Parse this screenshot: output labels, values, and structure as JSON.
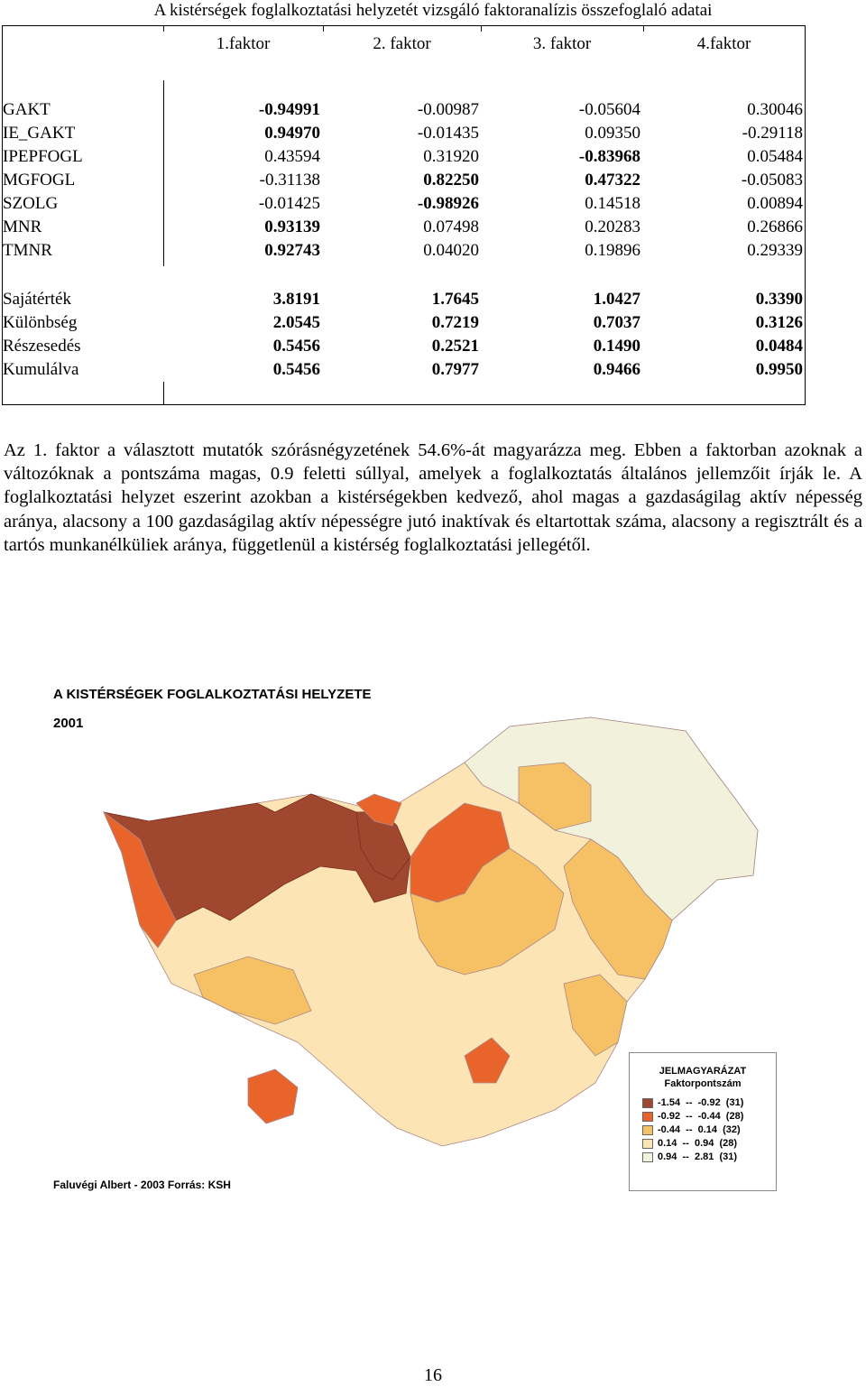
{
  "title": "A kistérségek foglalkoztatási helyzetét vizsgáló faktoranalízis összefoglaló adatai",
  "table": {
    "headers": [
      "1.faktor",
      "2. faktor",
      "3. faktor",
      "4.faktor"
    ],
    "rows": [
      {
        "label": "GAKT",
        "values": [
          "-0.94991",
          "-0.00987",
          "-0.05604",
          "0.30046"
        ],
        "bold": [
          true,
          false,
          false,
          false
        ]
      },
      {
        "label": "IE_GAKT",
        "values": [
          "0.94970",
          "-0.01435",
          "0.09350",
          "-0.29118"
        ],
        "bold": [
          true,
          false,
          false,
          false
        ]
      },
      {
        "label": "IPEPFOGL",
        "values": [
          "0.43594",
          "0.31920",
          "-0.83968",
          "0.05484"
        ],
        "bold": [
          false,
          false,
          true,
          false
        ]
      },
      {
        "label": "MGFOGL",
        "values": [
          "-0.31138",
          "0.82250",
          "0.47322",
          "-0.05083"
        ],
        "bold": [
          false,
          true,
          true,
          false
        ]
      },
      {
        "label": "SZOLG",
        "values": [
          "-0.01425",
          "-0.98926",
          "0.14518",
          "0.00894"
        ],
        "bold": [
          false,
          true,
          false,
          false
        ]
      },
      {
        "label": "MNR",
        "values": [
          "0.93139",
          "0.07498",
          "0.20283",
          "0.26866"
        ],
        "bold": [
          true,
          false,
          false,
          false
        ]
      },
      {
        "label": "TMNR",
        "values": [
          "0.92743",
          "0.04020",
          "0.19896",
          "0.29339"
        ],
        "bold": [
          true,
          false,
          false,
          false
        ]
      }
    ],
    "stats": [
      {
        "label": "Sajátérték",
        "values": [
          "3.8191",
          "1.7645",
          "1.0427",
          "0.3390"
        ]
      },
      {
        "label": "Különbség",
        "values": [
          "2.0545",
          "0.7219",
          "0.7037",
          "0.3126"
        ]
      },
      {
        "label": "Részesedés",
        "values": [
          "0.5456",
          "0.2521",
          "0.1490",
          "0.0484"
        ]
      },
      {
        "label": "Kumulálva",
        "values": [
          "0.5456",
          "0.7977",
          "0.9466",
          "0.9950"
        ]
      }
    ]
  },
  "paragraph": "Az 1. faktor a választott mutatók szórásnégyzetének 54.6%-át magyarázza meg. Ebben a faktorban azoknak a változóknak a pontszáma magas, 0.9 feletti súllyal, amelyek a foglalkoztatás általános jellemzőit írják le. A foglalkoztatási helyzet eszerint azokban a kistérségekben kedvező, ahol magas a gazdaságilag aktív népesség aránya, alacsony a 100 gazdaságilag aktív népességre jutó inaktívak és eltartottak száma, alacsony a regisztrált és a tartós munkanélküliek aránya, függetlenül a kistérség foglalkoztatási jellegétől.",
  "map": {
    "title": "A KISTÉRSÉGEK FOGLALKOZTATÁSI HELYZETE",
    "year": "2001",
    "credit": "Faluvégi Albert - 2003  Forrás: KSH",
    "legend": {
      "title": "JELMAGYARÁZAT",
      "subtitle": "Faktorpontszám",
      "items": [
        {
          "label": "-1.54  --  -0.92  (31)",
          "color": "#a0472f"
        },
        {
          "label": "-0.92  --  -0.44  (28)",
          "color": "#e8642a"
        },
        {
          "label": "-0.44  --  0.14  (32)",
          "color": "#f6c064"
        },
        {
          "label": "0.14  --  0.94  (28)",
          "color": "#fde4b4"
        },
        {
          "label": "0.94  --  2.81  (31)",
          "color": "#f2f2dc"
        }
      ]
    }
  },
  "page_number": "16"
}
